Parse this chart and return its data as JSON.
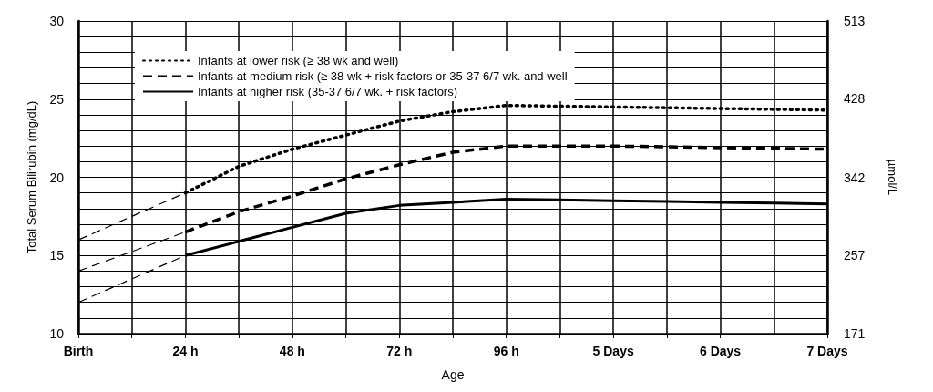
{
  "chart_data": {
    "type": "line",
    "xlabel": "Age",
    "ylabel": "Total Serum Bilirubin (mg/dL)",
    "y2label": "µmol/L",
    "categories": [
      "Birth",
      null,
      "24 h",
      null,
      "48 h",
      null,
      "72 h",
      null,
      "96 h",
      null,
      "5 Days",
      null,
      "6 Days",
      null,
      "7 Days"
    ],
    "ylim": [
      10,
      30
    ],
    "yticks": [
      10,
      {
        "value": 11,
        "label": null
      },
      {
        "value": 12,
        "label": null
      },
      {
        "value": 13,
        "label": null
      },
      {
        "value": 14,
        "label": null
      },
      15,
      {
        "value": 16,
        "label": null
      },
      {
        "value": 17,
        "label": null
      },
      {
        "value": 18,
        "label": null
      },
      {
        "value": 19,
        "label": null
      },
      20,
      {
        "value": 21,
        "label": null
      },
      {
        "value": 22,
        "label": null
      },
      {
        "value": 23,
        "label": null
      },
      {
        "value": 24,
        "label": null
      },
      25,
      {
        "value": 26,
        "label": null
      },
      {
        "value": 27,
        "label": null
      },
      {
        "value": 28,
        "label": null
      },
      {
        "value": 29,
        "label": null
      },
      30
    ],
    "y2lim": [
      171,
      513
    ],
    "y2ticks": [
      171,
      257,
      342,
      428,
      513
    ],
    "grid": true,
    "legend": "top left",
    "marker": "none",
    "series": [
      {
        "name": "Infants at lower risk (≥ 38 wk and well)",
        "color": "#000000",
        "line_style": "dotted",
        "values": [
          null,
          null,
          19,
          20.7,
          21.8,
          22.7,
          23.6,
          24.2,
          24.6,
          24.55,
          24.5,
          24.45,
          24.4,
          24.35,
          24.3
        ]
      },
      {
        "name": "Infants at medium risk (≥ 38 wk + risk factors or 35-37 6/7 wk. and well",
        "color": "#000000",
        "line_style": "dashed",
        "values": [
          null,
          null,
          16.5,
          17.8,
          18.8,
          19.9,
          20.8,
          21.6,
          22,
          22,
          22,
          21.95,
          21.9,
          21.85,
          21.8
        ]
      },
      {
        "name": "Infants at higher risk (35-37 6/7 wk. + risk factors)",
        "color": "#000000",
        "line_style": "solid",
        "values": [
          null,
          null,
          15,
          15.9,
          16.8,
          17.7,
          18.2,
          18.4,
          18.6,
          18.55,
          18.5,
          18.45,
          18.4,
          18.35,
          18.3
        ]
      },
      {
        "color": "#000000",
        "line_style": "dashed",
        "values": [
          16,
          17.5,
          19,
          null,
          null,
          null,
          null,
          null,
          null,
          null,
          null,
          null,
          null,
          null,
          null
        ]
      },
      {
        "color": "#000000",
        "line_style": "dashed",
        "values": [
          14,
          15.25,
          16.5,
          null,
          null,
          null,
          null,
          null,
          null,
          null,
          null,
          null,
          null,
          null,
          null
        ]
      },
      {
        "color": "#000000",
        "line_style": "dashed",
        "values": [
          12,
          13.5,
          15,
          null,
          null,
          null,
          null,
          null,
          null,
          null,
          null,
          null,
          null,
          null,
          null
        ]
      }
    ]
  }
}
